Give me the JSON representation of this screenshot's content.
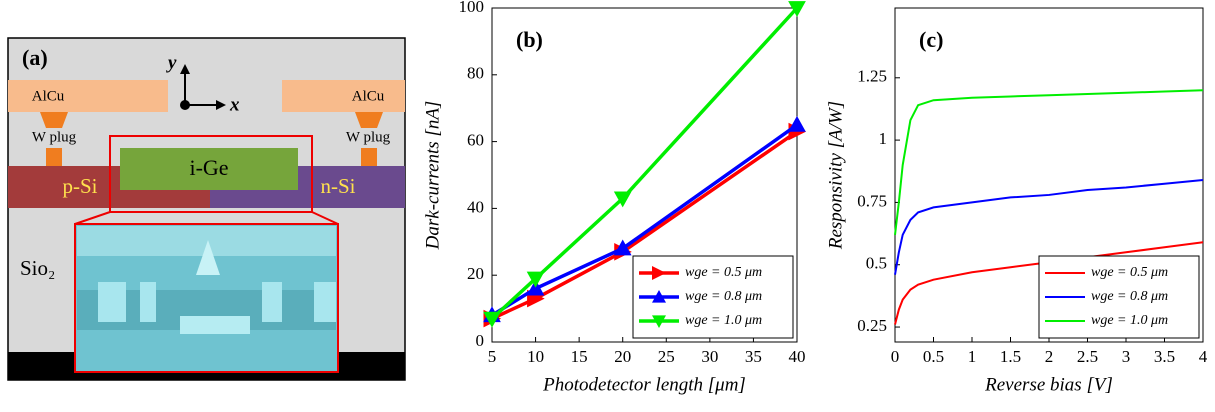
{
  "diagram": {
    "label": "(a)",
    "axis_y": "y",
    "axis_x": "x",
    "metal_left": "AlCu",
    "metal_right": "AlCu",
    "plug_left": "W plug",
    "plug_right": "W plug",
    "germanium": "i-Ge",
    "p_region": "p-Si",
    "n_region": "n-Si",
    "oxide": "Sio₂"
  },
  "chart_data": [
    {
      "type": "line",
      "label": "(b)",
      "x_label": "Photodetector length [μm]",
      "y_label": "Dark-currents [nA]",
      "x": [
        5,
        10,
        20,
        40
      ],
      "xlim": [
        5,
        40
      ],
      "xticks": [
        5,
        10,
        15,
        20,
        25,
        30,
        35,
        40
      ],
      "ylim": [
        0,
        100
      ],
      "yticks": [
        0,
        20,
        40,
        60,
        80,
        100
      ],
      "legend": "lower-right",
      "series": [
        {
          "name": "wge = 0.5 μm",
          "color": "#ff0000",
          "marker": "triangle-right",
          "values": [
            7,
            13,
            27,
            63
          ]
        },
        {
          "name": "wge = 0.8 μm",
          "color": "#0000ff",
          "marker": "triangle-up",
          "values": [
            8,
            16,
            28,
            65
          ]
        },
        {
          "name": "wge = 1.0 μm",
          "color": "#00ee00",
          "marker": "triangle-down",
          "values": [
            7,
            19,
            43,
            100
          ]
        }
      ]
    },
    {
      "type": "line",
      "label": "(c)",
      "x_label": "Reverse bias [V]",
      "y_label": "Responsivity [A/W]",
      "x": [
        0,
        0.05,
        0.1,
        0.2,
        0.3,
        0.5,
        1,
        1.5,
        2,
        2.5,
        3,
        3.5,
        4
      ],
      "xlim": [
        0,
        4
      ],
      "xticks": [
        0,
        0.5,
        1,
        1.5,
        2,
        2.5,
        3,
        3.5,
        4
      ],
      "ylim": [
        0.19,
        1.53
      ],
      "yticks": [
        0.25,
        0.5,
        0.75,
        1,
        1.25
      ],
      "legend": "lower-right",
      "series": [
        {
          "name": "wge = 0.5 μm",
          "color": "#ff0000",
          "values": [
            0.26,
            0.32,
            0.36,
            0.4,
            0.42,
            0.44,
            0.47,
            0.49,
            0.51,
            0.53,
            0.55,
            0.57,
            0.59
          ]
        },
        {
          "name": "wge = 0.8 μm",
          "color": "#0000ff",
          "values": [
            0.46,
            0.55,
            0.62,
            0.68,
            0.71,
            0.73,
            0.75,
            0.77,
            0.78,
            0.8,
            0.81,
            0.825,
            0.84
          ]
        },
        {
          "name": "wge = 1.0 μm",
          "color": "#00ee00",
          "values": [
            0.62,
            0.75,
            0.9,
            1.08,
            1.14,
            1.16,
            1.17,
            1.175,
            1.18,
            1.185,
            1.19,
            1.195,
            1.2
          ]
        }
      ]
    }
  ]
}
